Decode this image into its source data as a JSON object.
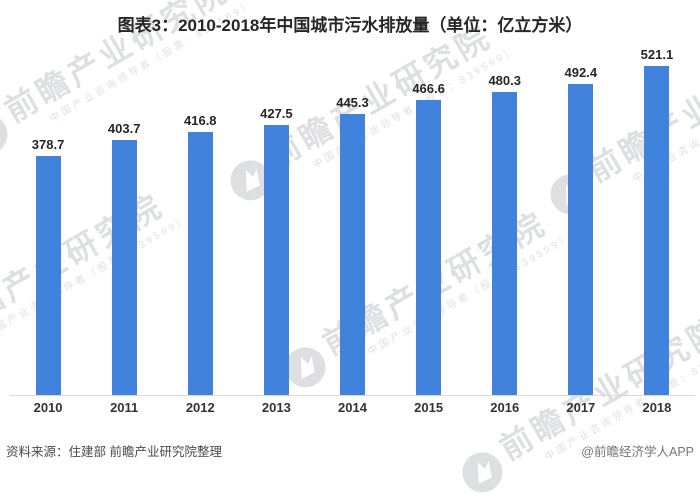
{
  "title": "图表3：2010-2018年中国城市污水排放量（单位：亿立方米）",
  "chart_data": {
    "type": "bar",
    "categories": [
      "2010",
      "2011",
      "2012",
      "2013",
      "2014",
      "2015",
      "2016",
      "2017",
      "2018"
    ],
    "values": [
      378.7,
      403.7,
      416.8,
      427.5,
      445.3,
      466.6,
      480.3,
      492.4,
      521.1
    ],
    "title": "图表3：2010-2018年中国城市污水排放量（单位：亿立方米）",
    "xlabel": "",
    "ylabel": "",
    "unit": "亿立方米",
    "ylim": [
      0,
      550
    ],
    "grid": false,
    "value_labels": true,
    "legend": "none",
    "bar_color": "#4182DC"
  },
  "footer": {
    "source": "资料来源：住建部 前瞻产业研究院整理",
    "credit": "@前瞻经济学人APP"
  },
  "watermark": {
    "brand": "前瞻产业研究院",
    "tagline": "中国产业咨询领导者（股票：839599）",
    "logo": "qianzhan-logo-icon"
  },
  "colors": {
    "bar": "#4182DC",
    "axis_line": "#D9D9D9",
    "title_text": "#262626",
    "value_label_text": "#262626",
    "tick_label_text": "#333333",
    "source_text": "#4A4A4A",
    "credit_text": "#757575",
    "watermark": "#B6BAC0",
    "background": "#FFFFFF"
  }
}
